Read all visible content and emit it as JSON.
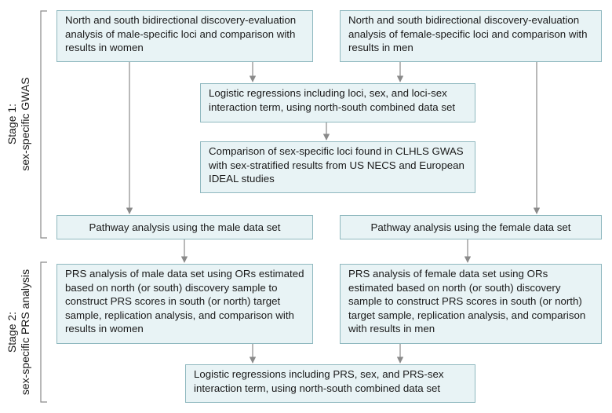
{
  "stages": {
    "stage1": {
      "line1": "Stage 1:",
      "line2": "sex-specific GWAS"
    },
    "stage2": {
      "line1": "Stage 2:",
      "line2": "sex-specific PRS analysis"
    }
  },
  "boxes": {
    "male_discovery": "North and south bidirectional discovery-evaluation analysis of male-specific loci and comparison with results in women",
    "female_discovery": "North and south bidirectional discovery-evaluation analysis of female-specific loci and comparison with results in men",
    "logistic_loci": "Logistic regressions including loci, sex, and loci-sex interaction term, using north-south combined data set",
    "comparison_studies": "Comparison of sex-specific loci found in CLHLS GWAS with sex-stratified results from US NECS and European IDEAL studies",
    "pathway_male": "Pathway analysis using the male data set",
    "pathway_female": "Pathway analysis using the female data set",
    "prs_male": "PRS analysis of male data set using ORs estimated based on north (or south) discovery sample to construct PRS scores in south (or north) target sample, replication analysis, and comparison with results in women",
    "prs_female": "PRS analysis of female data set using ORs estimated based on north (or south) discovery sample to construct PRS scores in south (or north) target sample, replication analysis, and comparison with results in men",
    "logistic_prs": "Logistic regressions including PRS, sex, and PRS-sex interaction term, using north-south combined data set"
  },
  "colors": {
    "box_fill": "#e8f3f5",
    "box_border": "#8fb8bf",
    "line": "#8a8a8a"
  }
}
